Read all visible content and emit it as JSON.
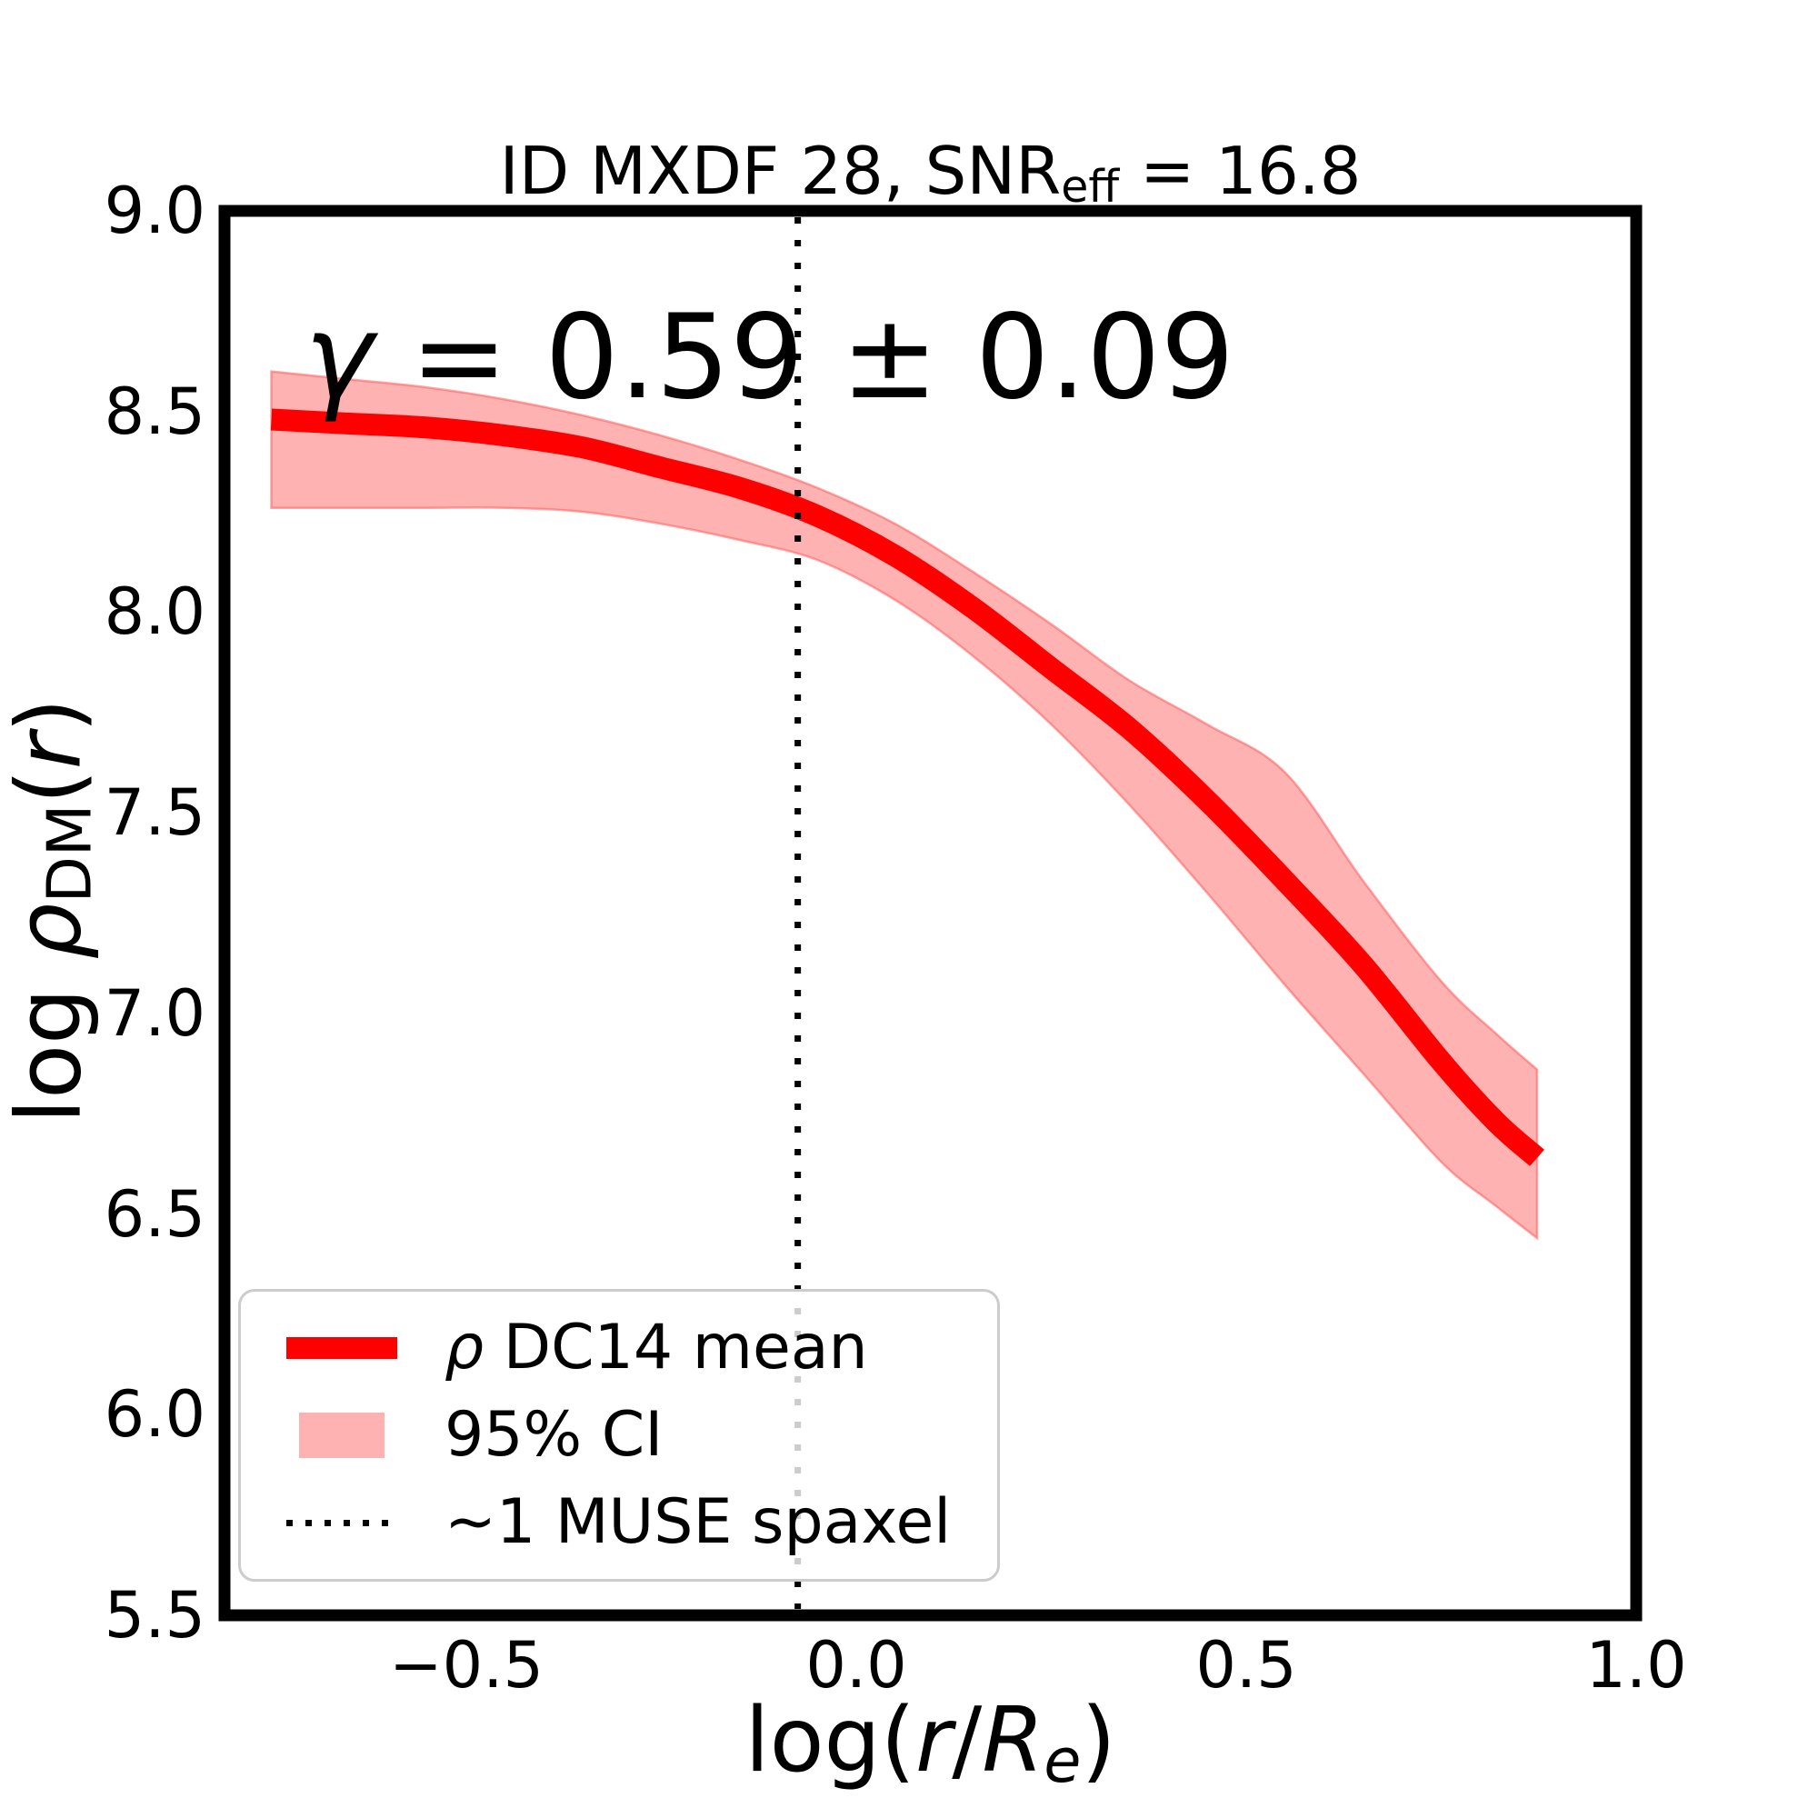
{
  "figure": {
    "background": "#ffffff"
  },
  "title": {
    "text": "ID MXDF 28, SNR_eff = 16.8",
    "segments": [
      {
        "t": "ID MXDF 28, SNR"
      },
      {
        "t": "eff",
        "sub": true
      },
      {
        "t": " = 16.8"
      }
    ]
  },
  "annotation": {
    "text": "γ = 0.59 ± 0.09",
    "segments": [
      {
        "t": "γ",
        "italic": true
      },
      {
        "t": " = 0.59 ± 0.09"
      }
    ]
  },
  "axes": {
    "xlabel": {
      "text": "log(r/R_e)",
      "segments": [
        {
          "t": "log("
        },
        {
          "t": "r",
          "italic": true
        },
        {
          "t": "/"
        },
        {
          "t": "R",
          "italic": true
        },
        {
          "t": "e",
          "sub": true,
          "italic": true
        },
        {
          "t": ")"
        }
      ]
    },
    "ylabel": {
      "text": "log ρ_DM(r)",
      "segments": [
        {
          "t": "log "
        },
        {
          "t": "ρ",
          "italic": true
        },
        {
          "t": "DM",
          "sub": true
        },
        {
          "t": "("
        },
        {
          "t": "r",
          "italic": true
        },
        {
          "t": ")"
        }
      ]
    },
    "xtick_labels": [
      "−0.5",
      "0.0",
      "0.5",
      "1.0"
    ],
    "ytick_labels": [
      "5.5",
      "6.0",
      "6.5",
      "7.0",
      "7.5",
      "8.0",
      "8.5",
      "9.0"
    ]
  },
  "legend": {
    "items": [
      {
        "swatch": "line",
        "label": "ρ DC14 mean",
        "segments": [
          {
            "t": "ρ",
            "italic": true
          },
          {
            "t": " DC14 mean"
          }
        ]
      },
      {
        "swatch": "patch",
        "label": "95% CI",
        "segments": [
          {
            "t": "95% CI"
          }
        ]
      },
      {
        "swatch": "dotted",
        "label": "~1 MUSE spaxel",
        "segments": [
          {
            "t": "~1 MUSE spaxel"
          }
        ]
      }
    ]
  },
  "colors": {
    "line": "#ff0000",
    "band": "rgba(255,0,0,0.30)",
    "band_edge": "rgba(255,80,80,0.50)",
    "vline": "#000000",
    "frame": "#000000",
    "legend_border": "#cccccc"
  },
  "chart_data": {
    "type": "line",
    "title": "ID MXDF 28, SNR_eff = 16.8",
    "xlabel": "log(r/R_e)",
    "ylabel": "log ρ_DM(r)",
    "xlim": [
      -0.81,
      1.0
    ],
    "ylim": [
      5.5,
      9.0
    ],
    "xticks": [
      -0.5,
      0.0,
      0.5,
      1.0
    ],
    "yticks": [
      5.5,
      6.0,
      6.5,
      7.0,
      7.5,
      8.0,
      8.5,
      9.0
    ],
    "grid": false,
    "legend_position": "lower left",
    "annotation": "γ = 0.59 ± 0.09",
    "vline": {
      "x": -0.075,
      "style": "dotted",
      "label": "~1 MUSE spaxel"
    },
    "x": [
      -0.75,
      -0.65,
      -0.55,
      -0.45,
      -0.35,
      -0.25,
      -0.15,
      -0.05,
      0.05,
      0.15,
      0.25,
      0.35,
      0.45,
      0.55,
      0.65,
      0.75,
      0.82,
      0.873
    ],
    "series": [
      {
        "name": "ρ DC14 mean",
        "type": "line",
        "color": "#ff0000",
        "y": [
          8.48,
          8.47,
          8.46,
          8.44,
          8.41,
          8.36,
          8.31,
          8.24,
          8.14,
          8.01,
          7.86,
          7.71,
          7.53,
          7.33,
          7.12,
          6.88,
          6.73,
          6.64
        ]
      },
      {
        "name": "95% CI",
        "type": "band",
        "color": "rgba(255,0,0,0.30)",
        "y_upper": [
          8.6,
          8.58,
          8.56,
          8.53,
          8.49,
          8.44,
          8.38,
          8.31,
          8.22,
          8.1,
          7.97,
          7.83,
          7.72,
          7.6,
          7.33,
          7.08,
          6.95,
          6.86
        ],
        "y_lower": [
          8.26,
          8.26,
          8.26,
          8.26,
          8.25,
          8.22,
          8.18,
          8.13,
          8.03,
          7.89,
          7.72,
          7.52,
          7.3,
          7.07,
          6.85,
          6.63,
          6.52,
          6.44
        ]
      }
    ]
  }
}
